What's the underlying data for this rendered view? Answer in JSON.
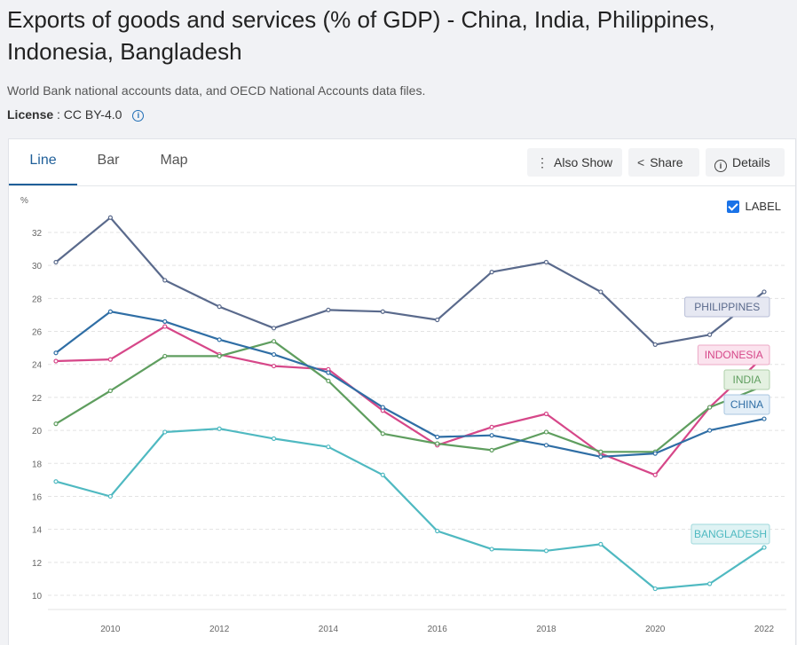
{
  "header": {
    "title": "Exports of goods and services (% of GDP) - China, India, Philippines, Indonesia, Bangladesh",
    "source": "World Bank national accounts data, and OECD National Accounts data files.",
    "license_label": "License",
    "license_value": ": CC BY-4.0"
  },
  "tabs": [
    {
      "label": "Line",
      "active": true
    },
    {
      "label": "Bar",
      "active": false
    },
    {
      "label": "Map",
      "active": false
    }
  ],
  "toolbar": {
    "also_show": "Also Show",
    "share": "Share",
    "details": "Details",
    "label_toggle": "LABEL",
    "label_checked": true
  },
  "chart_data": {
    "type": "line",
    "ylabel": "%",
    "xlim": [
      2009,
      2022
    ],
    "ylim": [
      10,
      32
    ],
    "x_ticks": [
      2010,
      2012,
      2014,
      2016,
      2018,
      2020,
      2022
    ],
    "y_ticks": [
      10,
      12,
      14,
      16,
      18,
      20,
      22,
      24,
      26,
      28,
      30,
      32
    ],
    "grid": "horizontal dashed",
    "x": [
      2009,
      2010,
      2011,
      2012,
      2013,
      2014,
      2015,
      2016,
      2017,
      2018,
      2019,
      2020,
      2021,
      2022
    ],
    "series": [
      {
        "name": "PHILIPPINES",
        "color": "#5a6a8c",
        "label_bg": "#e6e8f2",
        "label_border": "#b7bdd6",
        "values": [
          30.2,
          32.9,
          29.1,
          27.5,
          26.2,
          27.3,
          27.2,
          26.7,
          29.6,
          30.2,
          28.4,
          25.2,
          25.8,
          28.4
        ]
      },
      {
        "name": "INDONESIA",
        "color": "#d64789",
        "label_bg": "#fbe3ee",
        "label_border": "#ecaac7",
        "values": [
          24.2,
          24.3,
          26.3,
          24.6,
          23.9,
          23.7,
          21.2,
          19.1,
          20.2,
          21.0,
          18.6,
          17.3,
          21.4,
          24.5
        ]
      },
      {
        "name": "INDIA",
        "color": "#5f9e5f",
        "label_bg": "#e4f1e1",
        "label_border": "#afd0aa",
        "values": [
          20.4,
          22.4,
          24.5,
          24.5,
          25.4,
          23.0,
          19.8,
          19.2,
          18.8,
          19.9,
          18.7,
          18.7,
          21.4,
          22.7
        ]
      },
      {
        "name": "CHINA",
        "color": "#2f6ea5",
        "label_bg": "#e3eef7",
        "label_border": "#a9c6e0",
        "values": [
          24.7,
          27.2,
          26.6,
          25.5,
          24.6,
          23.5,
          21.4,
          19.6,
          19.7,
          19.1,
          18.4,
          18.6,
          20.0,
          20.7
        ]
      },
      {
        "name": "BANGLADESH",
        "color": "#4fb9c1",
        "label_bg": "#dff3f4",
        "label_border": "#9fd8dc",
        "values": [
          16.9,
          16.0,
          19.9,
          20.1,
          19.5,
          19.0,
          17.3,
          13.9,
          12.8,
          12.7,
          13.1,
          10.4,
          10.7,
          12.9
        ]
      }
    ]
  }
}
